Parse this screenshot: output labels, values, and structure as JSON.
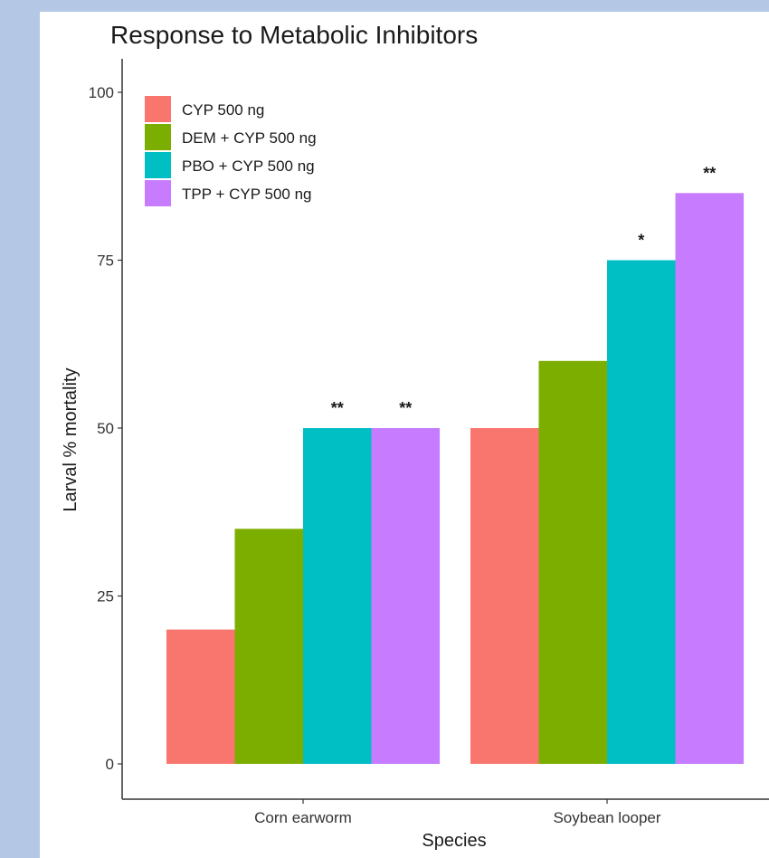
{
  "chart_data": {
    "type": "bar",
    "title": "Response to Metabolic Inhibitors",
    "xlabel": "Species",
    "ylabel": "Larval % mortality",
    "categories": [
      "Corn earworm",
      "Soybean looper"
    ],
    "ylim": [
      0,
      100
    ],
    "yticks": [
      "0",
      "25",
      "50",
      "75",
      "100"
    ],
    "grid": false,
    "legend_position": "top-left",
    "series": [
      {
        "name": "CYP 500 ng",
        "color": "#f8766d",
        "values": [
          20,
          50
        ],
        "annotations": [
          "",
          ""
        ]
      },
      {
        "name": "DEM + CYP 500 ng",
        "color": "#7cae00",
        "values": [
          35,
          60
        ],
        "annotations": [
          "",
          ""
        ]
      },
      {
        "name": "PBO + CYP 500 ng",
        "color": "#00bfc4",
        "values": [
          50,
          75
        ],
        "annotations": [
          "**",
          "*"
        ]
      },
      {
        "name": "TPP + CYP 500 ng",
        "color": "#c77cff",
        "values": [
          50,
          85
        ],
        "annotations": [
          "**",
          "**"
        ]
      }
    ]
  }
}
